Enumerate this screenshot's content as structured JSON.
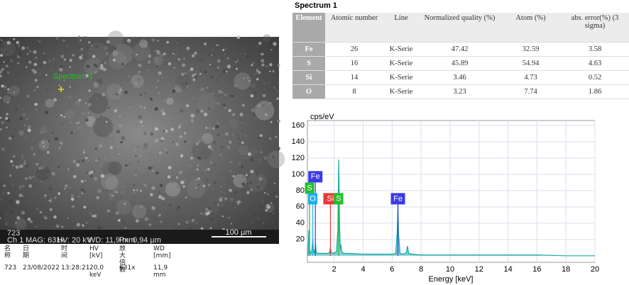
{
  "sem_image": {
    "label": "Spectrum 1",
    "info_id": "723",
    "info_channel": "Ch 1",
    "info_bar": [
      "MAG: 631x",
      "HV: 20 kV",
      "WD: 11,9 mm",
      "Px: 0,94 µm"
    ],
    "scale_bar": "100 µm"
  },
  "sem_metadata": {
    "headers": [
      "名称",
      "日期",
      "时间",
      "HV\n[kV]",
      "放大倍数",
      "WD\n[mm]"
    ],
    "row": [
      "723",
      "23/08/2022",
      "13:28:21",
      "20,0 keV",
      "631x",
      "11,9 mm"
    ]
  },
  "table": {
    "title": "Spectrum 1",
    "headers": [
      "Element",
      "Atomic number",
      "Line",
      "Normalized quality (%)",
      "Atom (%)",
      "abs. error(%) (3 sigma)"
    ],
    "rows": [
      [
        "Fe",
        "26",
        "K-Serie",
        "47.42",
        "32.59",
        "3.58"
      ],
      [
        "S",
        "16",
        "K-Serie",
        "45.89",
        "54.94",
        "4.63"
      ],
      [
        "Si",
        "14",
        "K-Serie",
        "3.46",
        "4.73",
        "0.52"
      ],
      [
        "O",
        "8",
        "K-Serie",
        "3.23",
        "7.74",
        "1.86"
      ]
    ]
  },
  "chart_data": {
    "type": "area",
    "y_label": "cps/eV",
    "x_label": "Energy [keV]",
    "color": "#1aa6a6",
    "grid": true,
    "xlim": [
      0.15,
      20
    ],
    "xticks": [
      2,
      4,
      6,
      8,
      10,
      12,
      14,
      16,
      18,
      20
    ],
    "ylim": [
      -8,
      166
    ],
    "yticks": [
      20,
      40,
      60,
      80,
      100,
      120,
      140,
      160
    ],
    "x": [
      0.17,
      0.2,
      0.25,
      0.28,
      0.31,
      0.36,
      0.45,
      0.52,
      0.56,
      0.62,
      0.68,
      0.71,
      0.75,
      0.85,
      1.0,
      1.2,
      1.5,
      1.68,
      1.74,
      1.8,
      1.95,
      2.15,
      2.25,
      2.31,
      2.37,
      2.42,
      2.46,
      2.52,
      2.65,
      3.0,
      4.0,
      5.0,
      6.0,
      6.25,
      6.35,
      6.4,
      6.45,
      6.55,
      6.8,
      6.98,
      7.06,
      7.14,
      7.4,
      8,
      10,
      12,
      14,
      16,
      18,
      20
    ],
    "values": [
      0,
      5,
      30,
      32,
      8,
      3,
      6,
      20,
      8,
      3,
      8,
      16,
      5,
      3,
      3,
      3,
      3,
      4,
      10,
      4,
      3,
      5,
      30,
      118,
      40,
      8,
      14,
      5,
      3,
      3,
      2,
      2,
      2,
      3,
      30,
      63,
      25,
      3,
      2,
      4,
      12,
      3,
      2,
      1,
      1,
      1,
      1,
      1,
      0,
      0
    ],
    "annotations": [
      {
        "label": "S",
        "x": 0.3,
        "y": 83,
        "color": "#22c02a"
      },
      {
        "label": "Fe",
        "x": 0.7,
        "y": 97,
        "color": "#3a3ae8"
      },
      {
        "label": "O",
        "x": 0.52,
        "y": 70,
        "color": "#20b0e8"
      },
      {
        "label": "Si",
        "x": 1.74,
        "y": 70,
        "color": "#e83a3a"
      },
      {
        "label": "S",
        "x": 2.31,
        "y": 70,
        "color": "#22c02a"
      },
      {
        "label": "Fe",
        "x": 6.4,
        "y": 70,
        "color": "#3a3ae8"
      }
    ]
  }
}
